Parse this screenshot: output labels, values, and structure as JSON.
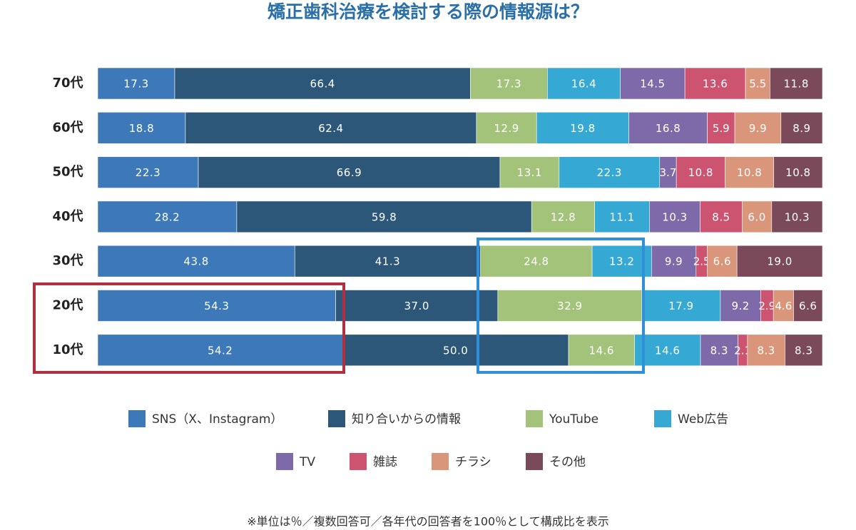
{
  "chart_data": {
    "type": "bar",
    "orientation": "horizontal",
    "stacked": true,
    "title": "矯正歯科治療を検討する際の情報源は？",
    "categories": [
      "70代",
      "60代",
      "50代",
      "40代",
      "30代",
      "20代",
      "10代"
    ],
    "series": [
      {
        "name": "SNS（X、Instagram）",
        "color": "#3d78b8",
        "values": [
          17.3,
          18.8,
          22.3,
          28.2,
          43.8,
          54.3,
          54.2
        ]
      },
      {
        "name": "知り合いからの情報",
        "color": "#2d5778",
        "values": [
          66.4,
          62.4,
          66.9,
          59.8,
          41.3,
          37.0,
          50.0
        ],
        "value_labels": [
          "66.4",
          "62.4",
          "66.9",
          "59.8",
          "41.3",
          "37.0",
          "50.0"
        ]
      },
      {
        "name": "YouTube",
        "color": "#a3c27a",
        "values": [
          17.3,
          12.9,
          13.1,
          12.8,
          24.8,
          32.9,
          14.6
        ]
      },
      {
        "name": "Web広告",
        "color": "#35a8d4",
        "values": [
          16.4,
          19.8,
          22.3,
          11.1,
          13.2,
          17.9,
          14.6
        ]
      },
      {
        "name": "TV",
        "color": "#7e6aa8",
        "values": [
          14.5,
          16.8,
          3.7,
          10.3,
          9.9,
          9.2,
          8.3
        ]
      },
      {
        "name": "雑誌",
        "color": "#cd5470",
        "values": [
          13.6,
          5.9,
          10.8,
          8.5,
          2.5,
          2.9,
          2.1
        ]
      },
      {
        "name": "チラシ",
        "color": "#d9967a",
        "values": [
          5.5,
          9.9,
          10.8,
          6.0,
          6.6,
          4.6,
          8.3
        ],
        "value_labels": [
          "5.5",
          "9.9",
          "10.8",
          "6.0",
          "6.6",
          "4.6",
          "8.3"
        ]
      },
      {
        "name": "その他",
        "color": "#7a4a5a",
        "values": [
          11.8,
          8.9,
          10.8,
          10.3,
          19.0,
          6.6,
          8.3
        ],
        "value_labels": [
          "11.8",
          "8.9",
          "10.8",
          "10.3",
          "19.0",
          "6.6",
          "8.3"
        ]
      }
    ],
    "footnote": "※単位は％／複数回答可／各年代の回答者を100％として構成比を表示"
  }
}
